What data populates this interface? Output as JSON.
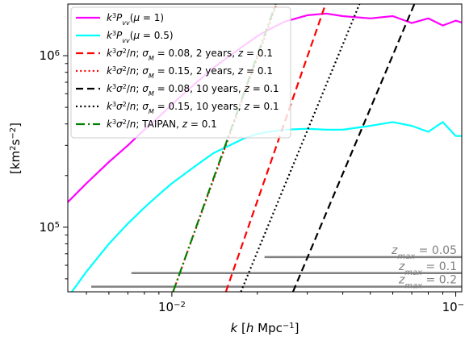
{
  "chart_data": {
    "type": "line",
    "xscale": "log",
    "yscale": "log",
    "xlim": [
      0.0043,
      0.105
    ],
    "ylim": [
      42000,
      2000000
    ],
    "xlabel": "k [h Mpc⁻¹]",
    "ylabel": "[km²s⁻²]",
    "x_ticks": [
      {
        "value": 0.01,
        "mantissa": "10",
        "exponent": "−2"
      },
      {
        "value": 0.1,
        "mantissa": "10",
        "exponent": "−1"
      }
    ],
    "y_ticks": [
      {
        "value": 100000,
        "mantissa": "10",
        "exponent": "5"
      },
      {
        "value": 1000000,
        "mantissa": "10",
        "exponent": "6"
      }
    ],
    "legend_position": "top-left",
    "series": [
      {
        "name": "k³Pᵥᵥ(μ = 1)",
        "color": "#ff00ff",
        "style": "solid",
        "x": [
          0.0043,
          0.005,
          0.006,
          0.007,
          0.008,
          0.009,
          0.01,
          0.012,
          0.014,
          0.016,
          0.018,
          0.02,
          0.022,
          0.025,
          0.03,
          0.035,
          0.04,
          0.05,
          0.06,
          0.07,
          0.08,
          0.09,
          0.1,
          0.105
        ],
        "y": [
          140000,
          180000,
          240000,
          300000,
          370000,
          440000,
          520000,
          680000,
          850000,
          1000000,
          1150000,
          1300000,
          1420000,
          1580000,
          1720000,
          1760000,
          1700000,
          1650000,
          1700000,
          1550000,
          1650000,
          1500000,
          1600000,
          1560000
        ]
      },
      {
        "name": "k³Pᵥᵥ(μ = 0.5)",
        "color": "#00ffff",
        "style": "solid",
        "x": [
          0.0043,
          0.005,
          0.006,
          0.007,
          0.008,
          0.009,
          0.01,
          0.012,
          0.014,
          0.016,
          0.018,
          0.02,
          0.022,
          0.025,
          0.03,
          0.035,
          0.04,
          0.05,
          0.06,
          0.07,
          0.08,
          0.09,
          0.1,
          0.105
        ],
        "y": [
          39000,
          55000,
          80000,
          105000,
          130000,
          155000,
          180000,
          225000,
          270000,
          300000,
          330000,
          350000,
          360000,
          370000,
          375000,
          370000,
          370000,
          390000,
          410000,
          390000,
          360000,
          410000,
          340000,
          340000
        ]
      },
      {
        "name": "k³σ²/n; σ_M = 0.08, 2 years, z = 0.1",
        "color": "#ff0000",
        "style": "dashed",
        "x": [
          0.0155,
          0.0348
        ],
        "y": [
          42000,
          2000000
        ]
      },
      {
        "name": "k³σ²/n; σ_M = 0.15, 2 years, z = 0.1",
        "color": "#ff0000",
        "style": "dotted",
        "x": [
          0.0101,
          0.0234
        ],
        "y": [
          42000,
          2000000
        ]
      },
      {
        "name": "k³σ²/n; σ_M = 0.08, 10 years, z = 0.1",
        "color": "#000000",
        "style": "dashed",
        "x": [
          0.0267,
          0.0715
        ],
        "y": [
          42000,
          2000000
        ]
      },
      {
        "name": "k³σ²/n; σ_M = 0.15, 10 years, z = 0.1",
        "color": "#000000",
        "style": "dotted",
        "x": [
          0.0175,
          0.0458
        ],
        "y": [
          42000,
          2000000
        ]
      },
      {
        "name": "k³σ²/n; TAIPAN, z = 0.1",
        "color": "#008000",
        "style": "dashdot",
        "x": [
          0.0101,
          0.0232
        ],
        "y": [
          42000,
          2000000
        ]
      }
    ],
    "zmax_lines": [
      {
        "label": "z_max = 0.05",
        "x_start": 0.0212,
        "y": 67000
      },
      {
        "label": "z_max = 0.1",
        "x_start": 0.0072,
        "y": 54000
      },
      {
        "label": "z_max = 0.2",
        "x_start": 0.0052,
        "y": 45000
      }
    ],
    "zmax_color": "#808080"
  }
}
